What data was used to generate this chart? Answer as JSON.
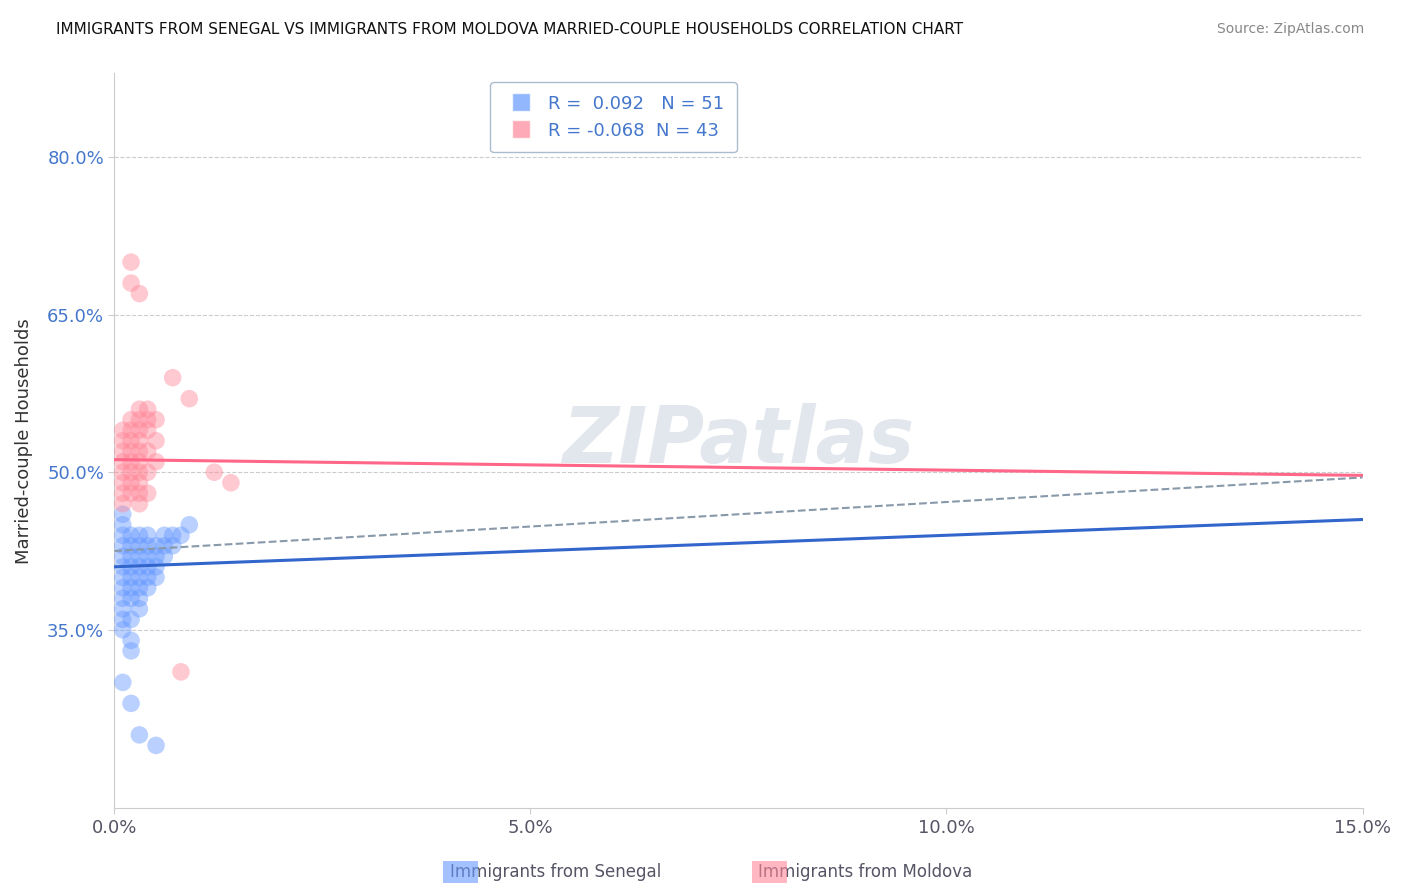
{
  "title": "IMMIGRANTS FROM SENEGAL VS IMMIGRANTS FROM MOLDOVA MARRIED-COUPLE HOUSEHOLDS CORRELATION CHART",
  "source": "Source: ZipAtlas.com",
  "ylabel": "Married-couple Households",
  "xlim": [
    0.0,
    0.15
  ],
  "ylim": [
    0.18,
    0.88
  ],
  "yticks": [
    0.35,
    0.5,
    0.65,
    0.8
  ],
  "ytick_labels": [
    "35.0%",
    "50.0%",
    "65.0%",
    "80.0%"
  ],
  "xticks": [
    0.0,
    0.05,
    0.1,
    0.15
  ],
  "xtick_labels": [
    "0.0%",
    "5.0%",
    "10.0%",
    "15.0%"
  ],
  "senegal_color": "#6699ff",
  "moldova_color": "#ff8899",
  "senegal_R": 0.092,
  "senegal_N": 51,
  "moldova_R": -0.068,
  "moldova_N": 43,
  "watermark": "ZIPatlas",
  "legend_label_1": "Immigrants from Senegal",
  "legend_label_2": "Immigrants from Moldova",
  "senegal_line": [
    0.0,
    0.41,
    0.15,
    0.455
  ],
  "moldova_line": [
    0.0,
    0.512,
    0.15,
    0.497
  ],
  "dash_line": [
    0.0,
    0.425,
    0.15,
    0.495
  ],
  "senegal_points": [
    [
      0.001,
      0.42
    ],
    [
      0.001,
      0.44
    ],
    [
      0.001,
      0.45
    ],
    [
      0.001,
      0.46
    ],
    [
      0.001,
      0.43
    ],
    [
      0.001,
      0.41
    ],
    [
      0.001,
      0.4
    ],
    [
      0.001,
      0.39
    ],
    [
      0.001,
      0.38
    ],
    [
      0.001,
      0.37
    ],
    [
      0.001,
      0.36
    ],
    [
      0.001,
      0.35
    ],
    [
      0.002,
      0.43
    ],
    [
      0.002,
      0.44
    ],
    [
      0.002,
      0.42
    ],
    [
      0.002,
      0.41
    ],
    [
      0.002,
      0.4
    ],
    [
      0.002,
      0.39
    ],
    [
      0.002,
      0.38
    ],
    [
      0.002,
      0.36
    ],
    [
      0.002,
      0.34
    ],
    [
      0.002,
      0.33
    ],
    [
      0.003,
      0.44
    ],
    [
      0.003,
      0.43
    ],
    [
      0.003,
      0.42
    ],
    [
      0.003,
      0.41
    ],
    [
      0.003,
      0.4
    ],
    [
      0.003,
      0.39
    ],
    [
      0.003,
      0.38
    ],
    [
      0.003,
      0.37
    ],
    [
      0.004,
      0.44
    ],
    [
      0.004,
      0.43
    ],
    [
      0.004,
      0.42
    ],
    [
      0.004,
      0.41
    ],
    [
      0.004,
      0.4
    ],
    [
      0.004,
      0.39
    ],
    [
      0.005,
      0.43
    ],
    [
      0.005,
      0.42
    ],
    [
      0.005,
      0.41
    ],
    [
      0.005,
      0.4
    ],
    [
      0.006,
      0.44
    ],
    [
      0.006,
      0.43
    ],
    [
      0.006,
      0.42
    ],
    [
      0.007,
      0.44
    ],
    [
      0.007,
      0.43
    ],
    [
      0.008,
      0.44
    ],
    [
      0.009,
      0.45
    ],
    [
      0.001,
      0.3
    ],
    [
      0.002,
      0.28
    ],
    [
      0.003,
      0.25
    ],
    [
      0.005,
      0.24
    ]
  ],
  "moldova_points": [
    [
      0.001,
      0.54
    ],
    [
      0.001,
      0.53
    ],
    [
      0.001,
      0.52
    ],
    [
      0.001,
      0.51
    ],
    [
      0.001,
      0.5
    ],
    [
      0.001,
      0.49
    ],
    [
      0.001,
      0.48
    ],
    [
      0.001,
      0.47
    ],
    [
      0.002,
      0.55
    ],
    [
      0.002,
      0.54
    ],
    [
      0.002,
      0.53
    ],
    [
      0.002,
      0.52
    ],
    [
      0.002,
      0.51
    ],
    [
      0.002,
      0.5
    ],
    [
      0.002,
      0.49
    ],
    [
      0.002,
      0.48
    ],
    [
      0.003,
      0.56
    ],
    [
      0.003,
      0.55
    ],
    [
      0.003,
      0.54
    ],
    [
      0.003,
      0.53
    ],
    [
      0.003,
      0.52
    ],
    [
      0.003,
      0.51
    ],
    [
      0.003,
      0.5
    ],
    [
      0.003,
      0.49
    ],
    [
      0.003,
      0.48
    ],
    [
      0.003,
      0.47
    ],
    [
      0.004,
      0.56
    ],
    [
      0.004,
      0.55
    ],
    [
      0.004,
      0.54
    ],
    [
      0.004,
      0.52
    ],
    [
      0.004,
      0.5
    ],
    [
      0.004,
      0.48
    ],
    [
      0.005,
      0.55
    ],
    [
      0.005,
      0.53
    ],
    [
      0.005,
      0.51
    ],
    [
      0.002,
      0.68
    ],
    [
      0.002,
      0.7
    ],
    [
      0.003,
      0.67
    ],
    [
      0.007,
      0.59
    ],
    [
      0.009,
      0.57
    ],
    [
      0.012,
      0.5
    ],
    [
      0.014,
      0.49
    ],
    [
      0.008,
      0.31
    ]
  ]
}
